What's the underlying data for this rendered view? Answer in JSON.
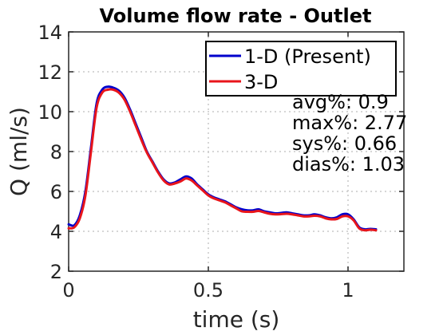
{
  "chart_data": {
    "type": "line",
    "title": "Volume flow rate - Outlet",
    "xlabel": "time (s)",
    "ylabel": "Q (ml/s)",
    "xlim": [
      0,
      1.2
    ],
    "ylim": [
      2,
      14
    ],
    "xticks": [
      0,
      0.5,
      1
    ],
    "xtick_labels": [
      "0",
      "0.5",
      "1"
    ],
    "yticks": [
      2,
      4,
      6,
      8,
      10,
      12,
      14
    ],
    "ytick_labels": [
      "2",
      "4",
      "6",
      "8",
      "10",
      "12",
      "14"
    ],
    "grid": true,
    "legend_position": "top-right",
    "colors": {
      "blue": "#0000cc",
      "red": "#e8151b"
    },
    "series": [
      {
        "name": "1-D (Present)",
        "color": "#0000cc",
        "x": [
          0,
          0.02,
          0.04,
          0.06,
          0.08,
          0.1,
          0.12,
          0.14,
          0.16,
          0.18,
          0.2,
          0.22,
          0.24,
          0.26,
          0.28,
          0.3,
          0.32,
          0.34,
          0.36,
          0.38,
          0.4,
          0.42,
          0.44,
          0.46,
          0.48,
          0.5,
          0.52,
          0.54,
          0.56,
          0.58,
          0.6,
          0.62,
          0.64,
          0.66,
          0.68,
          0.7,
          0.72,
          0.74,
          0.76,
          0.78,
          0.8,
          0.82,
          0.84,
          0.86,
          0.88,
          0.9,
          0.92,
          0.94,
          0.96,
          0.98,
          1.0,
          1.02,
          1.04,
          1.06,
          1.08,
          1.1
        ],
        "y": [
          4.35,
          4.3,
          4.8,
          6.0,
          8.2,
          10.4,
          11.1,
          11.25,
          11.2,
          11.05,
          10.7,
          10.1,
          9.4,
          8.7,
          8.0,
          7.5,
          7.0,
          6.6,
          6.4,
          6.45,
          6.6,
          6.75,
          6.65,
          6.35,
          6.1,
          5.85,
          5.7,
          5.6,
          5.5,
          5.35,
          5.2,
          5.1,
          5.05,
          5.05,
          5.1,
          5.0,
          4.95,
          4.9,
          4.92,
          4.95,
          4.9,
          4.85,
          4.8,
          4.8,
          4.85,
          4.8,
          4.7,
          4.65,
          4.7,
          4.85,
          4.85,
          4.6,
          4.2,
          4.1,
          4.12,
          4.1
        ]
      },
      {
        "name": "3-D",
        "color": "#e8151b",
        "x": [
          0,
          0.02,
          0.04,
          0.06,
          0.08,
          0.1,
          0.12,
          0.14,
          0.16,
          0.18,
          0.2,
          0.22,
          0.24,
          0.26,
          0.28,
          0.3,
          0.32,
          0.34,
          0.36,
          0.38,
          0.4,
          0.42,
          0.44,
          0.46,
          0.48,
          0.5,
          0.52,
          0.54,
          0.56,
          0.58,
          0.6,
          0.62,
          0.64,
          0.66,
          0.68,
          0.7,
          0.72,
          0.74,
          0.76,
          0.78,
          0.8,
          0.82,
          0.84,
          0.86,
          0.88,
          0.9,
          0.92,
          0.94,
          0.96,
          0.98,
          1.0,
          1.02,
          1.04,
          1.06,
          1.08,
          1.1
        ],
        "y": [
          4.15,
          4.2,
          4.65,
          5.8,
          8.0,
          10.2,
          10.95,
          11.1,
          11.1,
          10.95,
          10.6,
          10.0,
          9.3,
          8.6,
          7.95,
          7.45,
          6.95,
          6.55,
          6.35,
          6.4,
          6.5,
          6.65,
          6.55,
          6.3,
          6.05,
          5.8,
          5.65,
          5.55,
          5.45,
          5.3,
          5.15,
          5.0,
          4.98,
          4.98,
          5.02,
          4.95,
          4.88,
          4.85,
          4.86,
          4.88,
          4.85,
          4.8,
          4.75,
          4.75,
          4.78,
          4.75,
          4.65,
          4.6,
          4.62,
          4.75,
          4.75,
          4.55,
          4.15,
          4.05,
          4.08,
          4.05
        ]
      }
    ],
    "annotations": [
      "avg%: 0.9",
      "max%: 2.77",
      "sys%: 0.66",
      "dias%: 1.03"
    ]
  }
}
